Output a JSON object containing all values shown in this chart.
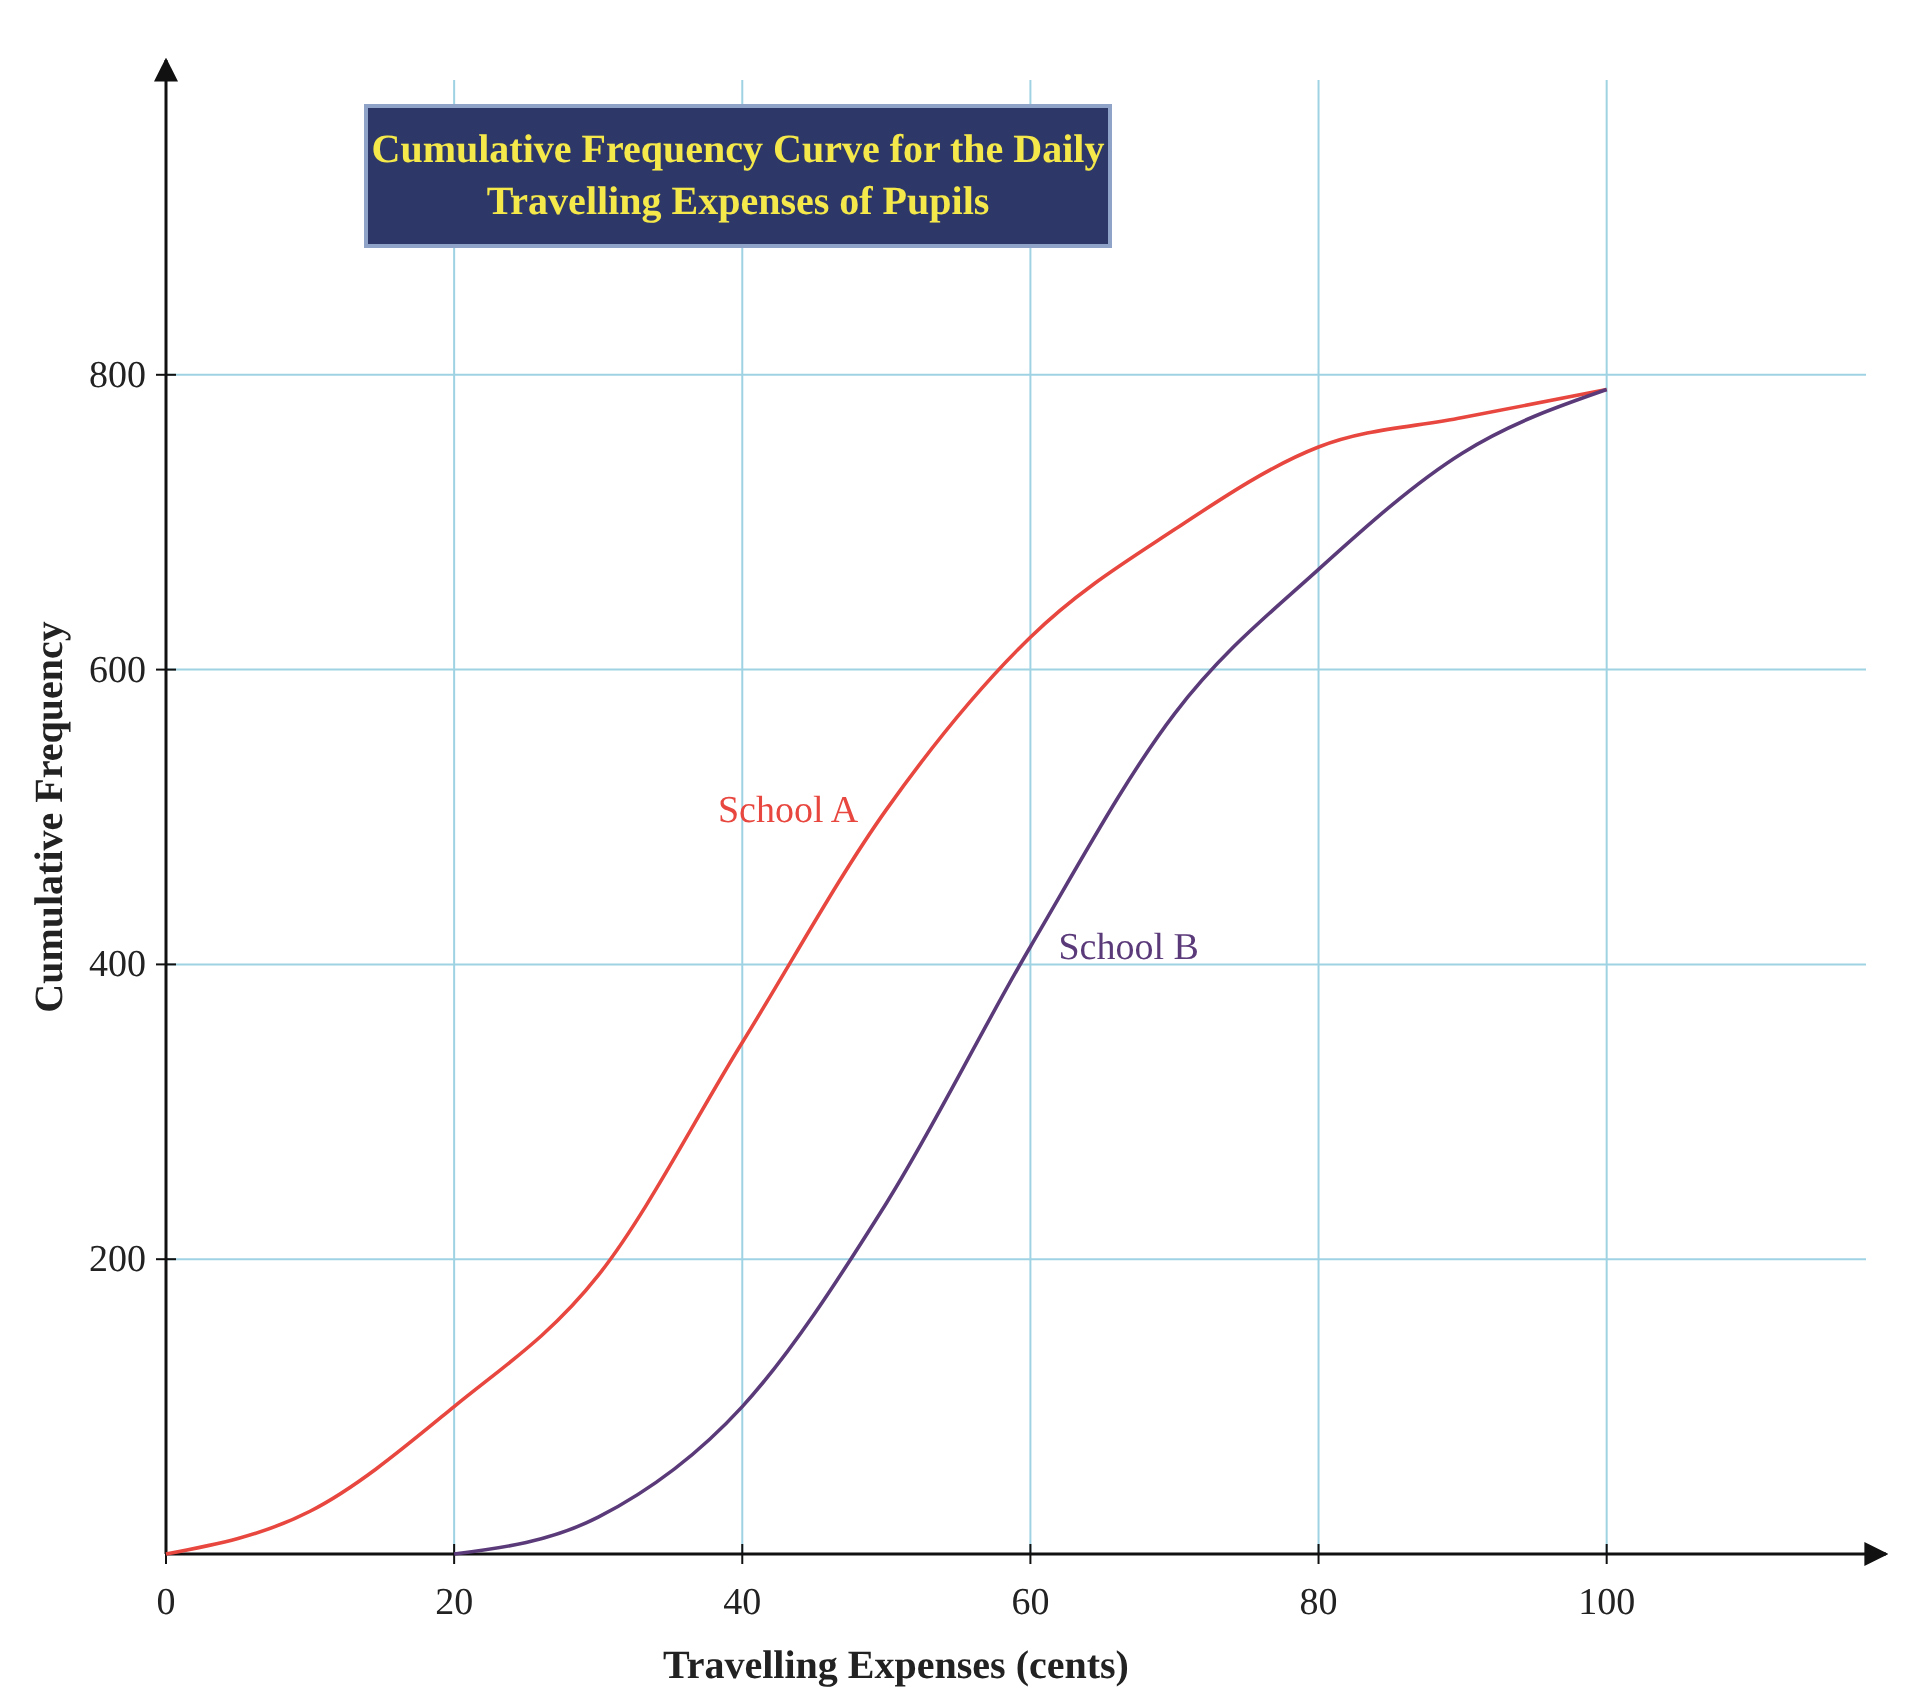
{
  "chart_data": {
    "type": "line",
    "title": "Cumulative Frequency Curve for the Daily Travelling Expenses of Pupils",
    "xlabel": "Travelling Expenses (cents)",
    "ylabel": "Cumulative Frequency",
    "xlim": [
      0,
      118
    ],
    "ylim": [
      0,
      1000
    ],
    "xticks": [
      {
        "value": 0,
        "label": "0"
      },
      20,
      40,
      60,
      80,
      100
    ],
    "yticks": [
      200,
      400,
      600,
      800
    ],
    "grid": true,
    "marker": "none",
    "line_style": "solid",
    "series": [
      {
        "name": "School A",
        "color": "#e8473f",
        "x": [
          0,
          10,
          20,
          30,
          40,
          50,
          60,
          70,
          80,
          90,
          100
        ],
        "values": [
          0,
          29,
          100,
          189,
          347,
          505,
          622,
          695,
          751,
          771,
          790
        ]
      },
      {
        "name": "School B",
        "color": "#5b3a7a",
        "x": [
          20,
          30,
          40,
          50,
          60,
          70,
          80,
          90,
          100
        ],
        "values": [
          0,
          25,
          100,
          238,
          412,
          570,
          668,
          747,
          790
        ]
      }
    ]
  }
}
